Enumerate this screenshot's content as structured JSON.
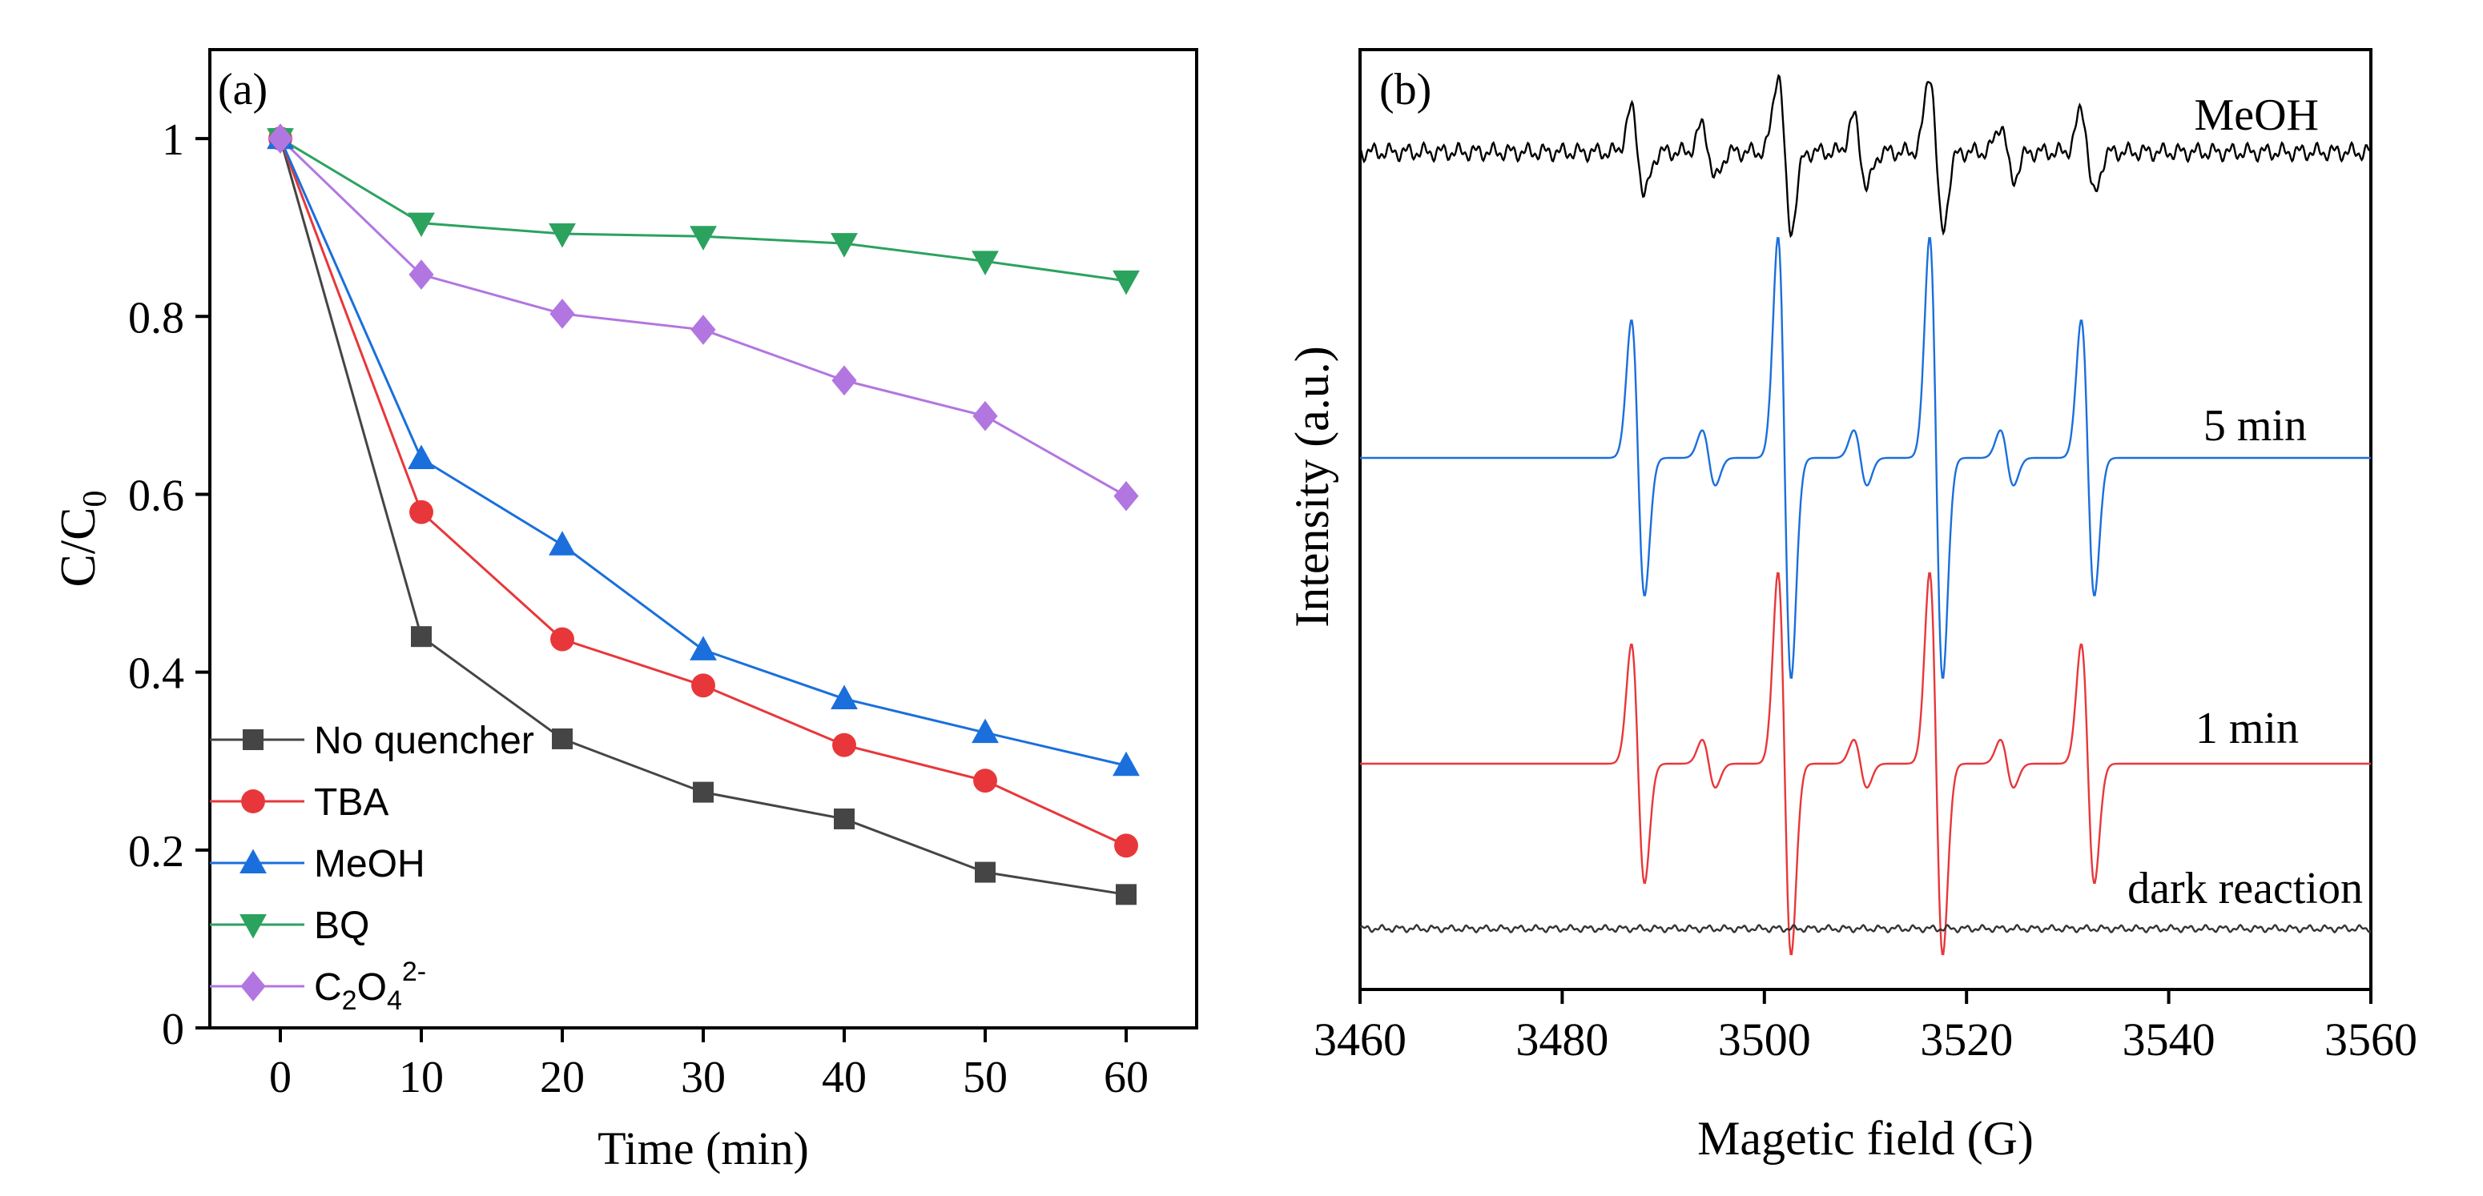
{
  "chart_data": [
    {
      "type": "line",
      "panel_label": "(a)",
      "xlabel": "Time (min)",
      "ylabel_main": "C/C",
      "ylabel_sub": "0",
      "xlim": [
        -5,
        65
      ],
      "ylim": [
        0,
        1.1
      ],
      "x_ticks": [
        0,
        10,
        20,
        30,
        40,
        50,
        60
      ],
      "y_ticks": [
        {
          "value": 0,
          "label": "0"
        },
        {
          "value": 0.2,
          "label": "0.2"
        },
        {
          "value": 0.4,
          "label": "0.4"
        },
        {
          "value": 0.6,
          "label": "0.6"
        },
        {
          "value": 0.8,
          "label": "0.8"
        },
        {
          "value": 1,
          "label": "1"
        }
      ],
      "x": [
        0,
        10,
        20,
        30,
        40,
        50,
        60
      ],
      "legend_position": "bottom-left",
      "series": [
        {
          "name": "No quencher",
          "marker": "square",
          "color": "#454545",
          "values": [
            1.0,
            0.44,
            0.325,
            0.265,
            0.235,
            0.175,
            0.15
          ]
        },
        {
          "name": "TBA",
          "marker": "circle",
          "color": "#e8373a",
          "values": [
            1.0,
            0.58,
            0.437,
            0.385,
            0.318,
            0.278,
            0.205
          ]
        },
        {
          "name": "MeOH",
          "marker": "triangle-up",
          "color": "#1a6fdc",
          "values": [
            1.0,
            0.64,
            0.543,
            0.425,
            0.37,
            0.332,
            0.295
          ]
        },
        {
          "name": "BQ",
          "marker": "triangle-down",
          "color": "#2ca25f",
          "values": [
            1.0,
            0.905,
            0.893,
            0.89,
            0.882,
            0.862,
            0.84
          ]
        },
        {
          "name": "C2O42-",
          "legend_base": "C",
          "legend_sub1": "2",
          "legend_mid": "O",
          "legend_sub2": "4",
          "legend_sup": "2-",
          "marker": "diamond",
          "color": "#b276e0",
          "values": [
            1.0,
            0.847,
            0.803,
            0.785,
            0.728,
            0.688,
            0.598
          ]
        }
      ]
    },
    {
      "type": "line",
      "panel_label": "(b)",
      "xlabel": "Magetic field (G)",
      "ylabel": "Intensity (a.u.)",
      "xlim": [
        3460,
        3560
      ],
      "x_ticks": [
        3460,
        3480,
        3500,
        3520,
        3540,
        3560
      ],
      "peak_positions_G": [
        3487.5,
        3494.5,
        3502,
        3509.5,
        3517,
        3524,
        3532
      ],
      "series": [
        {
          "name": "MeOH",
          "color": "#000000",
          "baseline_offset": 3,
          "amplitude": 0.85,
          "noise": 0.12,
          "peak_weights": [
            0.55,
            0.35,
            1.0,
            0.45,
            1.0,
            0.35,
            0.55
          ]
        },
        {
          "name": "5 min",
          "color": "#1a6fdc",
          "baseline_offset": 2,
          "amplitude": 1.5,
          "noise": 0.0,
          "peak_weights": [
            1.0,
            0.2,
            1.6,
            0.2,
            1.6,
            0.2,
            1.0
          ]
        },
        {
          "name": "1 min",
          "color": "#e8373a",
          "baseline_offset": 1,
          "amplitude": 1.3,
          "noise": 0.0,
          "peak_weights": [
            1.0,
            0.2,
            1.6,
            0.2,
            1.6,
            0.2,
            1.0
          ]
        },
        {
          "name": "dark reaction",
          "color": "#333333",
          "baseline_offset": 0,
          "amplitude": 0.0,
          "noise": 0.04,
          "peak_weights": [
            0,
            0,
            0,
            0,
            0,
            0,
            0
          ]
        }
      ]
    }
  ]
}
